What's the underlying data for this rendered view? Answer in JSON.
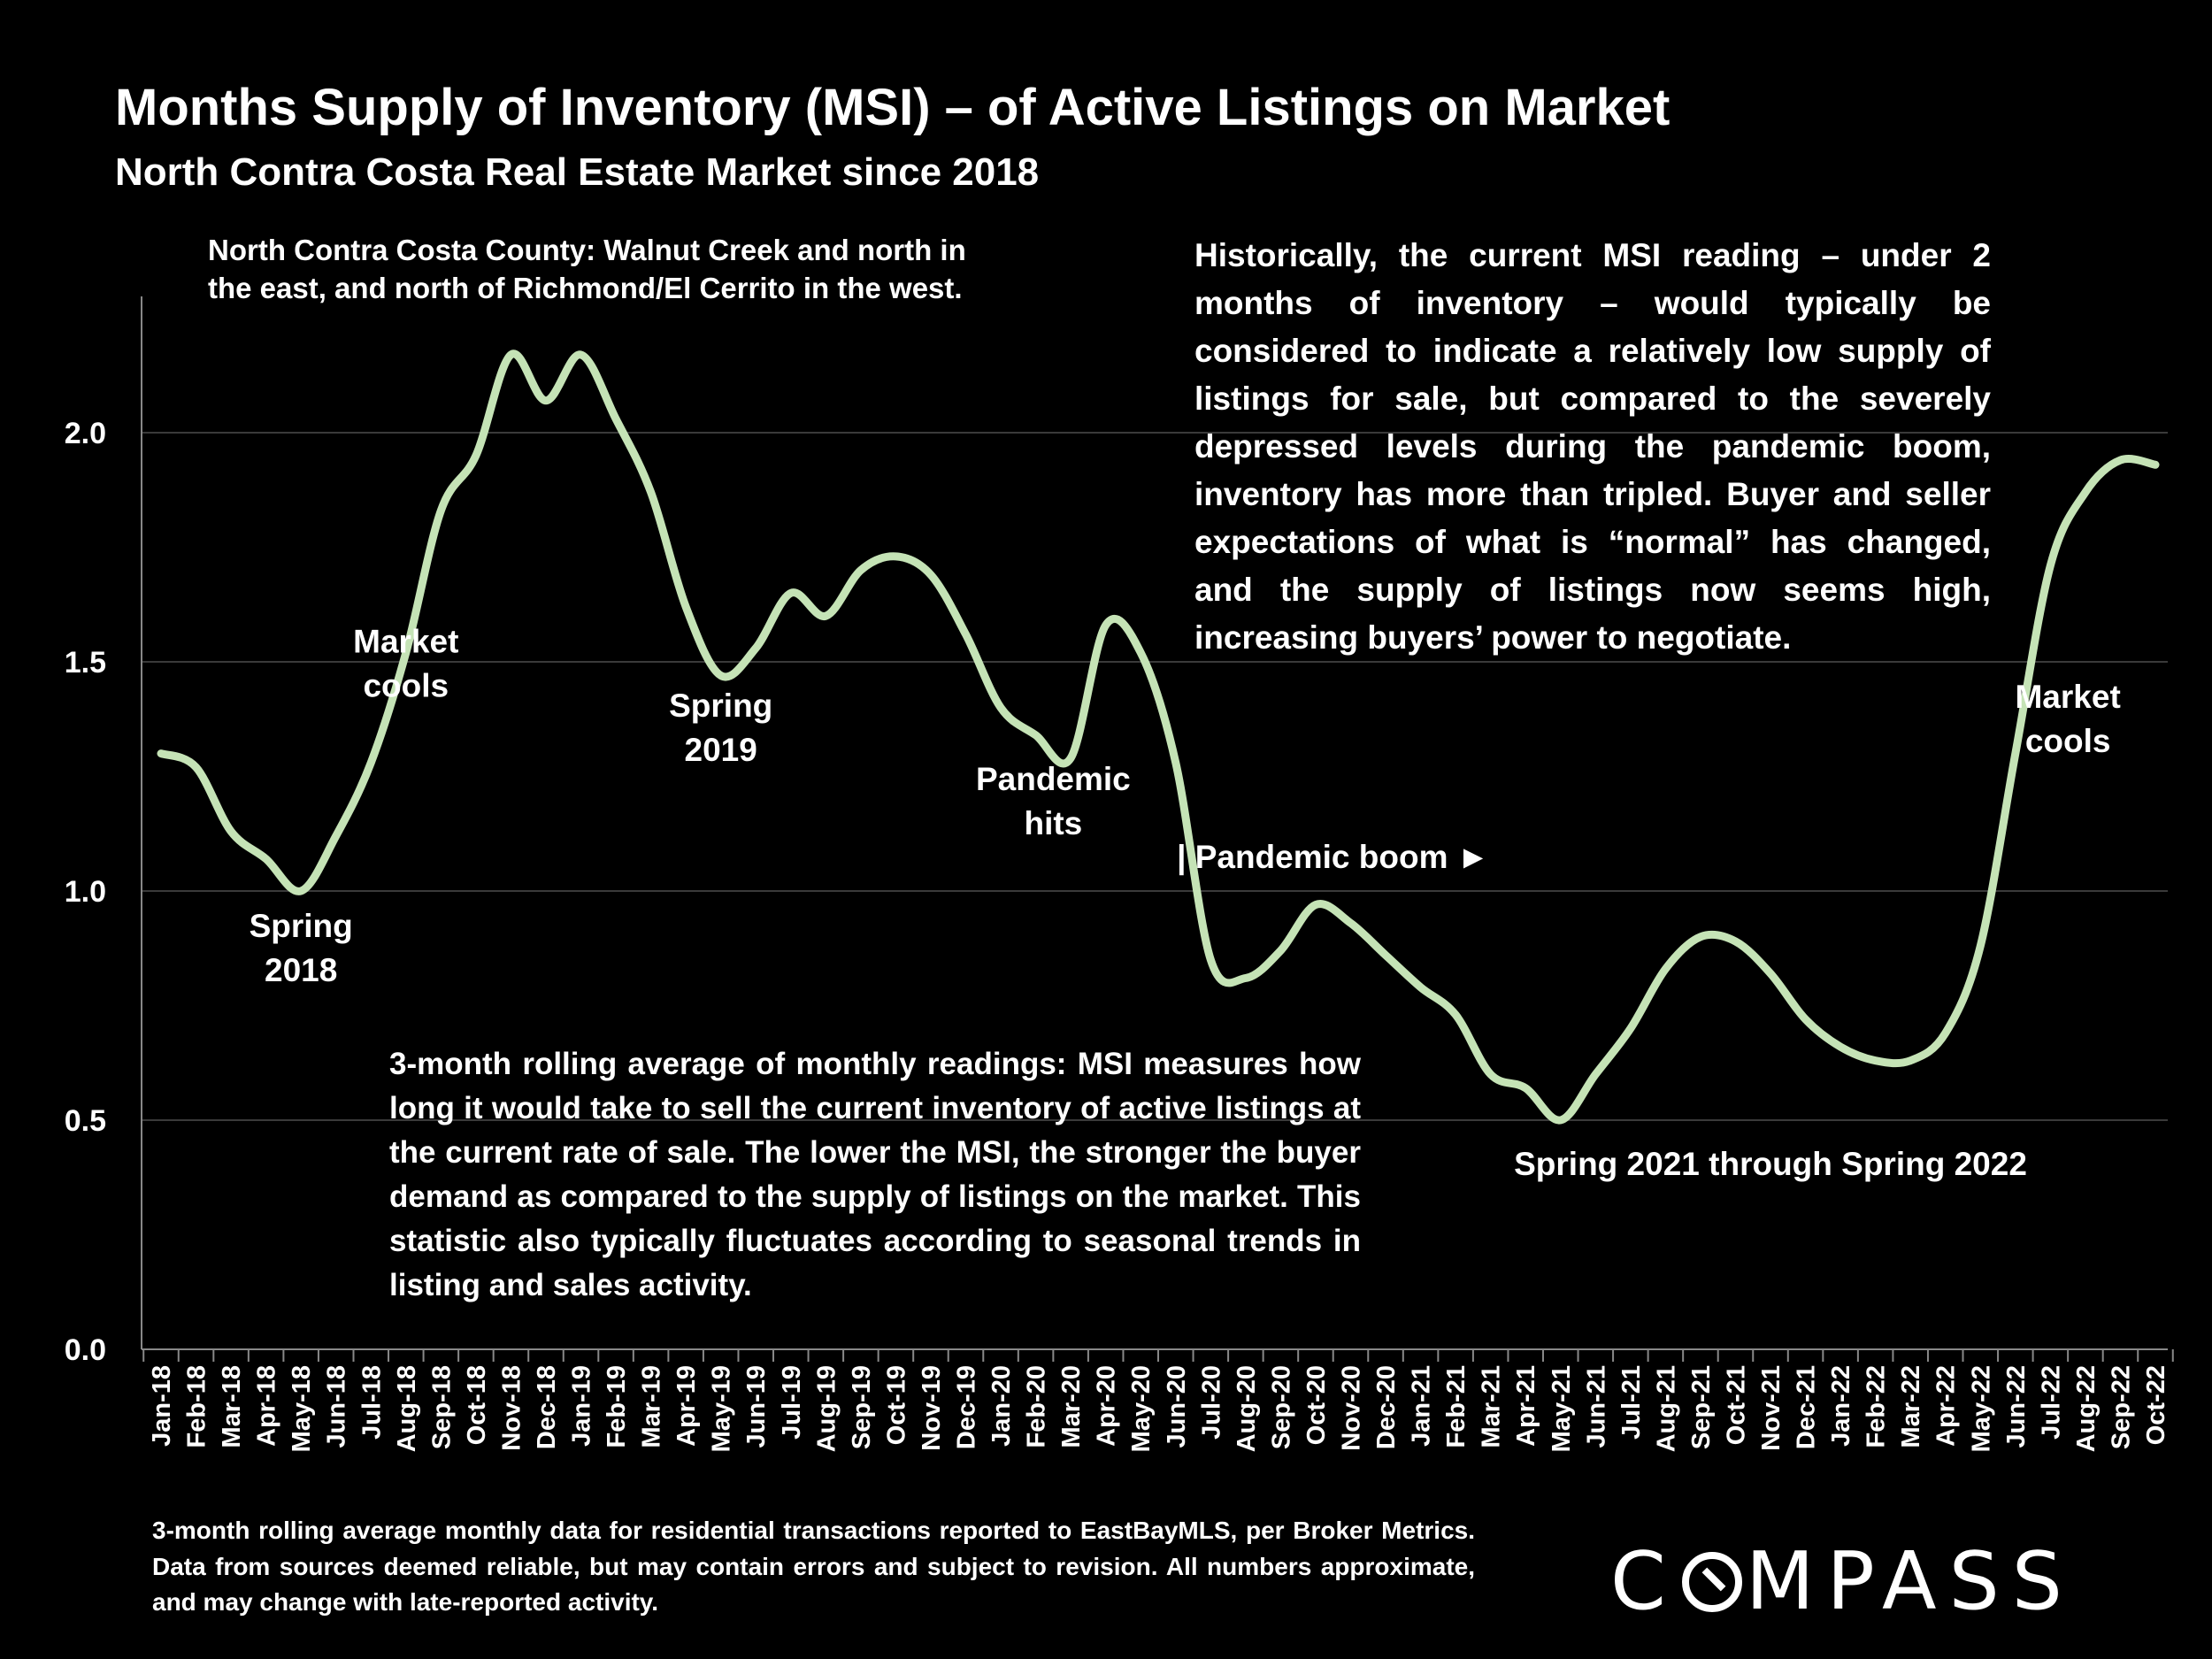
{
  "title": "Months Supply of Inventory (MSI) – of Active Listings on Market",
  "subtitle": "North Contra Costa Real Estate Market since 2018",
  "notes": {
    "region": "North Contra Costa County: Walnut Creek and north in the east, and north of Richmond/El Cerrito in the west.",
    "historical": "Historically, the current MSI reading – under 2 months of inventory – would typically be considered to indicate a relatively low supply of listings for sale, but compared to the severely depressed levels during the pandemic boom, inventory has more than tripled. Buyer and seller expectations of what is “normal” has changed, and the supply of listings now seems high, increasing buyers’ power to negotiate.",
    "definition": "3-month rolling average of monthly readings: MSI measures how long it would take to sell the current inventory of active listings at the current rate of sale. The lower the MSI, the stronger the buyer demand as compared to the supply of listings on the market. This statistic also typically fluctuates according to seasonal trends in listing and sales activity.",
    "footnote": "3-month rolling average monthly data for residential transactions reported to EastBayMLS, per Broker Metrics. Data from sources deemed reliable, but may contain errors and subject to revision. All numbers approximate, and may change with late-reported activity."
  },
  "logo": {
    "before": "C",
    "after": "MPASS"
  },
  "colors": {
    "background": "#000000",
    "line": "#c5e3b6",
    "text": "#ffffff",
    "grid": "#3a3a3a"
  },
  "chart_data": {
    "type": "line",
    "ylim": [
      0,
      2.3
    ],
    "yticks": [
      "0.0",
      "0.5",
      "1.0",
      "1.5",
      "2.0"
    ],
    "grid": true,
    "legend": "none",
    "categories": [
      "Jan-18",
      "Feb-18",
      "Mar-18",
      "Apr-18",
      "May-18",
      "Jun-18",
      "Jul-18",
      "Aug-18",
      "Sep-18",
      "Oct-18",
      "Nov-18",
      "Dec-18",
      "Jan-19",
      "Feb-19",
      "Mar-19",
      "Apr-19",
      "May-19",
      "Jun-19",
      "Jul-19",
      "Aug-19",
      "Sep-19",
      "Oct-19",
      "Nov-19",
      "Dec-19",
      "Jan-20",
      "Feb-20",
      "Mar-20",
      "Apr-20",
      "May-20",
      "Jun-20",
      "Jul-20",
      "Aug-20",
      "Sep-20",
      "Oct-20",
      "Nov-20",
      "Dec-20",
      "Jan-21",
      "Feb-21",
      "Mar-21",
      "Apr-21",
      "May-21",
      "Jun-21",
      "Jul-21",
      "Aug-21",
      "Sep-21",
      "Oct-21",
      "Nov-21",
      "Dec-21",
      "Jan-22",
      "Feb-22",
      "Mar-22",
      "Apr-22",
      "May-22",
      "Jun-22",
      "Jul-22",
      "Aug-22",
      "Sep-22",
      "Oct-22"
    ],
    "series": [
      {
        "values": [
          1.3,
          1.27,
          1.13,
          1.07,
          1.0,
          1.12,
          1.28,
          1.52,
          1.83,
          1.95,
          2.17,
          2.07,
          2.17,
          2.03,
          1.87,
          1.62,
          1.47,
          1.53,
          1.65,
          1.6,
          1.7,
          1.73,
          1.69,
          1.56,
          1.4,
          1.34,
          1.29,
          1.58,
          1.52,
          1.28,
          0.85,
          0.81,
          0.87,
          0.97,
          0.93,
          0.86,
          0.79,
          0.73,
          0.6,
          0.57,
          0.5,
          0.6,
          0.7,
          0.83,
          0.9,
          0.89,
          0.82,
          0.72,
          0.66,
          0.63,
          0.63,
          0.69,
          0.88,
          1.3,
          1.71,
          1.87,
          1.94,
          1.93
        ]
      }
    ],
    "annotations": [
      {
        "lines": [
          "Spring",
          "2018"
        ],
        "x": 4,
        "y": 0.9
      },
      {
        "lines": [
          "Market",
          "cools"
        ],
        "x": 7,
        "y": 1.52
      },
      {
        "lines": [
          "Spring",
          "2019"
        ],
        "x": 16,
        "y": 1.38
      },
      {
        "lines": [
          "Pandemic",
          "hits"
        ],
        "x": 25.5,
        "y": 1.22
      },
      {
        "lines": [
          "| Pandemic boom ►"
        ],
        "x": 33.5,
        "y": 1.05
      },
      {
        "lines": [
          "Spring 2021 through Spring 2022"
        ],
        "x": 46,
        "y": 0.38
      },
      {
        "lines": [
          "Market",
          "cools"
        ],
        "x": 54.5,
        "y": 1.4
      }
    ]
  }
}
